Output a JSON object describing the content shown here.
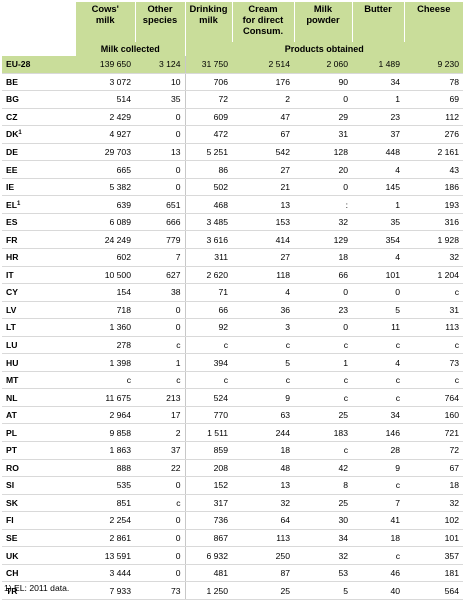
{
  "columns": {
    "country": "",
    "cows_milk": [
      "Cows'",
      "milk"
    ],
    "other_species": [
      "Other",
      "species"
    ],
    "drinking_milk": [
      "Drinking",
      "milk"
    ],
    "cream": [
      "Cream",
      "for direct",
      "Consum."
    ],
    "milk_powder": [
      "Milk",
      "powder"
    ],
    "butter": "Butter",
    "cheese": "Cheese"
  },
  "groups": {
    "milk_collected": "Milk collected",
    "products_obtained": "Products obtained"
  },
  "eu_row": {
    "name": "EU-28",
    "values": [
      "139 650",
      "3 124",
      "31 750",
      "2 514",
      "2 060",
      "1 489",
      "9 230"
    ]
  },
  "rows": [
    {
      "name": "BE",
      "note": "",
      "values": [
        "3 072",
        "10",
        "706",
        "176",
        "90",
        "34",
        "78"
      ]
    },
    {
      "name": "BG",
      "note": "",
      "values": [
        "514",
        "35",
        "72",
        "2",
        "0",
        "1",
        "69"
      ]
    },
    {
      "name": "CZ",
      "note": "",
      "values": [
        "2 429",
        "0",
        "609",
        "47",
        "29",
        "23",
        "112"
      ]
    },
    {
      "name": "DK",
      "note": "1",
      "values": [
        "4 927",
        "0",
        "472",
        "67",
        "31",
        "37",
        "276"
      ]
    },
    {
      "name": "DE",
      "note": "",
      "values": [
        "29 703",
        "13",
        "5 251",
        "542",
        "128",
        "448",
        "2 161"
      ]
    },
    {
      "name": "EE",
      "note": "",
      "values": [
        "665",
        "0",
        "86",
        "27",
        "20",
        "4",
        "43"
      ]
    },
    {
      "name": "IE",
      "note": "",
      "values": [
        "5 382",
        "0",
        "502",
        "21",
        "0",
        "145",
        "186"
      ]
    },
    {
      "name": "EL",
      "note": "1",
      "values": [
        "639",
        "651",
        "468",
        "13",
        ":",
        "1",
        "193"
      ]
    },
    {
      "name": "ES",
      "note": "",
      "values": [
        "6 089",
        "666",
        "3 485",
        "153",
        "32",
        "35",
        "316"
      ]
    },
    {
      "name": "FR",
      "note": "",
      "values": [
        "24 249",
        "779",
        "3 616",
        "414",
        "129",
        "354",
        "1 928"
      ]
    },
    {
      "name": "HR",
      "note": "",
      "values": [
        "602",
        "7",
        "311",
        "27",
        "18",
        "4",
        "32"
      ]
    },
    {
      "name": "IT",
      "note": "",
      "values": [
        "10 500",
        "627",
        "2 620",
        "118",
        "66",
        "101",
        "1 204"
      ]
    },
    {
      "name": "CY",
      "note": "",
      "values": [
        "154",
        "38",
        "71",
        "4",
        "0",
        "0",
        "c"
      ]
    },
    {
      "name": "LV",
      "note": "",
      "values": [
        "718",
        "0",
        "66",
        "36",
        "23",
        "5",
        "31"
      ]
    },
    {
      "name": "LT",
      "note": "",
      "values": [
        "1 360",
        "0",
        "92",
        "3",
        "0",
        "11",
        "113"
      ]
    },
    {
      "name": "LU",
      "note": "",
      "values": [
        "278",
        "c",
        "c",
        "c",
        "c",
        "c",
        "c"
      ]
    },
    {
      "name": "HU",
      "note": "",
      "values": [
        "1 398",
        "1",
        "394",
        "5",
        "1",
        "4",
        "73"
      ]
    },
    {
      "name": "MT",
      "note": "",
      "values": [
        "c",
        "c",
        "c",
        "c",
        "c",
        "c",
        "c"
      ]
    },
    {
      "name": "NL",
      "note": "",
      "values": [
        "11 675",
        "213",
        "524",
        "9",
        "c",
        "c",
        "764"
      ]
    },
    {
      "name": "AT",
      "note": "",
      "values": [
        "2 964",
        "17",
        "770",
        "63",
        "25",
        "34",
        "160"
      ]
    },
    {
      "name": "PL",
      "note": "",
      "values": [
        "9 858",
        "2",
        "1 511",
        "244",
        "183",
        "146",
        "721"
      ]
    },
    {
      "name": "PT",
      "note": "",
      "values": [
        "1 863",
        "37",
        "859",
        "18",
        "c",
        "28",
        "72"
      ]
    },
    {
      "name": "RO",
      "note": "",
      "values": [
        "888",
        "22",
        "208",
        "48",
        "42",
        "9",
        "67"
      ]
    },
    {
      "name": "SI",
      "note": "",
      "values": [
        "535",
        "0",
        "152",
        "13",
        "8",
        "c",
        "18"
      ]
    },
    {
      "name": "SK",
      "note": "",
      "values": [
        "851",
        "c",
        "317",
        "32",
        "25",
        "7",
        "32"
      ]
    },
    {
      "name": "FI",
      "note": "",
      "values": [
        "2 254",
        "0",
        "736",
        "64",
        "30",
        "41",
        "102"
      ]
    },
    {
      "name": "SE",
      "note": "",
      "values": [
        "2 861",
        "0",
        "867",
        "113",
        "34",
        "18",
        "101"
      ]
    },
    {
      "name": "UK",
      "note": "",
      "values": [
        "13 591",
        "0",
        "6 932",
        "250",
        "32",
        "c",
        "357"
      ]
    }
  ],
  "other_rows": [
    {
      "name": "CH",
      "note": "",
      "values": [
        "3 444",
        "0",
        "481",
        "87",
        "53",
        "46",
        "181"
      ]
    },
    {
      "name": "TR",
      "note": "",
      "values": [
        "7 933",
        "73",
        "1 250",
        "25",
        "5",
        "40",
        "564"
      ]
    }
  ],
  "footnote": "1) EL: 2011 data."
}
